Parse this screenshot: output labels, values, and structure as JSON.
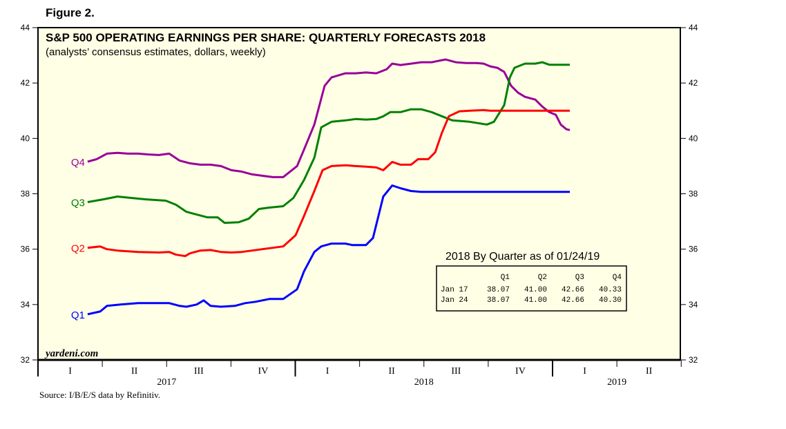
{
  "figure_label": "Figure 2.",
  "chart_data": {
    "type": "line",
    "title": "S&P 500 OPERATING EARNINGS PER SHARE: QUARTERLY FORECASTS 2018",
    "subtitle": "(analysts’ consensus estimates, dollars, weekly)",
    "xlabel": "",
    "ylabel": "",
    "xlim": [
      2017.0,
      2019.5
    ],
    "ylim": [
      32,
      44
    ],
    "yticks": [
      32,
      34,
      36,
      38,
      40,
      42,
      44
    ],
    "x_quarter_labels": [
      "I",
      "II",
      "III",
      "IV",
      "I",
      "II",
      "III",
      "IV",
      "I",
      "II"
    ],
    "x_year_labels": [
      "2017",
      "2018",
      "2019"
    ],
    "watermark": "yardeni.com",
    "source": "Source: I/B/E/S data by Refinitiv.",
    "series": [
      {
        "name": "Q4",
        "color": "#990099",
        "points": [
          [
            2017.193,
            39.16
          ],
          [
            2017.228,
            39.25
          ],
          [
            2017.268,
            39.45
          ],
          [
            2017.309,
            39.48
          ],
          [
            2017.349,
            39.45
          ],
          [
            2017.389,
            39.45
          ],
          [
            2017.43,
            39.42
          ],
          [
            2017.47,
            39.4
          ],
          [
            2017.51,
            39.45
          ],
          [
            2017.55,
            39.2
          ],
          [
            2017.591,
            39.1
          ],
          [
            2017.631,
            39.05
          ],
          [
            2017.671,
            39.05
          ],
          [
            2017.711,
            39.0
          ],
          [
            2017.752,
            38.85
          ],
          [
            2017.792,
            38.8
          ],
          [
            2017.832,
            38.7
          ],
          [
            2017.872,
            38.65
          ],
          [
            2017.913,
            38.6
          ],
          [
            2017.953,
            38.6
          ],
          [
            2018.007,
            39.0
          ],
          [
            2018.034,
            39.6
          ],
          [
            2018.074,
            40.5
          ],
          [
            2018.114,
            41.9
          ],
          [
            2018.141,
            42.2
          ],
          [
            2018.195,
            42.35
          ],
          [
            2018.235,
            42.35
          ],
          [
            2018.275,
            42.38
          ],
          [
            2018.315,
            42.35
          ],
          [
            2018.356,
            42.5
          ],
          [
            2018.377,
            42.7
          ],
          [
            2018.409,
            42.65
          ],
          [
            2018.45,
            42.7
          ],
          [
            2018.49,
            42.75
          ],
          [
            2018.53,
            42.75
          ],
          [
            2018.584,
            42.85
          ],
          [
            2018.624,
            42.75
          ],
          [
            2018.664,
            42.72
          ],
          [
            2018.705,
            42.72
          ],
          [
            2018.732,
            42.7
          ],
          [
            2018.758,
            42.6
          ],
          [
            2018.785,
            42.55
          ],
          [
            2018.812,
            42.4
          ],
          [
            2018.839,
            41.9
          ],
          [
            2018.866,
            41.65
          ],
          [
            2018.893,
            41.5
          ],
          [
            2018.933,
            41.4
          ],
          [
            2018.96,
            41.15
          ],
          [
            2018.987,
            40.95
          ],
          [
            2019.013,
            40.85
          ],
          [
            2019.032,
            40.5
          ],
          [
            2019.054,
            40.33
          ],
          [
            2019.067,
            40.3
          ]
        ]
      },
      {
        "name": "Q3",
        "color": "#008000",
        "points": [
          [
            2017.193,
            37.7
          ],
          [
            2017.255,
            37.8
          ],
          [
            2017.309,
            37.9
          ],
          [
            2017.362,
            37.85
          ],
          [
            2017.416,
            37.8
          ],
          [
            2017.497,
            37.75
          ],
          [
            2017.537,
            37.6
          ],
          [
            2017.577,
            37.35
          ],
          [
            2017.617,
            37.25
          ],
          [
            2017.658,
            37.15
          ],
          [
            2017.698,
            37.15
          ],
          [
            2017.725,
            36.95
          ],
          [
            2017.779,
            36.97
          ],
          [
            2017.819,
            37.1
          ],
          [
            2017.859,
            37.45
          ],
          [
            2017.899,
            37.5
          ],
          [
            2017.953,
            37.55
          ],
          [
            2017.993,
            37.85
          ],
          [
            2018.034,
            38.5
          ],
          [
            2018.074,
            39.3
          ],
          [
            2018.101,
            40.4
          ],
          [
            2018.141,
            40.6
          ],
          [
            2018.195,
            40.65
          ],
          [
            2018.235,
            40.7
          ],
          [
            2018.275,
            40.68
          ],
          [
            2018.315,
            40.7
          ],
          [
            2018.342,
            40.8
          ],
          [
            2018.369,
            40.95
          ],
          [
            2018.409,
            40.95
          ],
          [
            2018.45,
            41.05
          ],
          [
            2018.49,
            41.05
          ],
          [
            2018.53,
            40.95
          ],
          [
            2018.57,
            40.8
          ],
          [
            2018.611,
            40.65
          ],
          [
            2018.678,
            40.6
          ],
          [
            2018.745,
            40.5
          ],
          [
            2018.772,
            40.6
          ],
          [
            2018.812,
            41.2
          ],
          [
            2018.834,
            42.2
          ],
          [
            2018.852,
            42.55
          ],
          [
            2018.893,
            42.7
          ],
          [
            2018.933,
            42.7
          ],
          [
            2018.96,
            42.75
          ],
          [
            2018.987,
            42.66
          ],
          [
            2019.067,
            42.66
          ]
        ]
      },
      {
        "name": "Q2",
        "color": "#ff0000",
        "points": [
          [
            2017.193,
            36.05
          ],
          [
            2017.242,
            36.1
          ],
          [
            2017.268,
            36.0
          ],
          [
            2017.309,
            35.95
          ],
          [
            2017.389,
            35.9
          ],
          [
            2017.47,
            35.88
          ],
          [
            2017.51,
            35.9
          ],
          [
            2017.537,
            35.8
          ],
          [
            2017.572,
            35.75
          ],
          [
            2017.591,
            35.85
          ],
          [
            2017.631,
            35.95
          ],
          [
            2017.671,
            35.97
          ],
          [
            2017.711,
            35.9
          ],
          [
            2017.752,
            35.88
          ],
          [
            2017.792,
            35.9
          ],
          [
            2017.832,
            35.95
          ],
          [
            2017.872,
            36.0
          ],
          [
            2017.913,
            36.05
          ],
          [
            2017.953,
            36.1
          ],
          [
            2018.001,
            36.5
          ],
          [
            2018.034,
            37.2
          ],
          [
            2018.074,
            38.1
          ],
          [
            2018.106,
            38.85
          ],
          [
            2018.141,
            39.0
          ],
          [
            2018.195,
            39.03
          ],
          [
            2018.235,
            39.0
          ],
          [
            2018.275,
            38.98
          ],
          [
            2018.315,
            38.95
          ],
          [
            2018.342,
            38.85
          ],
          [
            2018.377,
            39.15
          ],
          [
            2018.409,
            39.05
          ],
          [
            2018.45,
            39.05
          ],
          [
            2018.477,
            39.25
          ],
          [
            2018.517,
            39.25
          ],
          [
            2018.544,
            39.5
          ],
          [
            2018.57,
            40.2
          ],
          [
            2018.597,
            40.8
          ],
          [
            2018.638,
            40.98
          ],
          [
            2018.678,
            41.0
          ],
          [
            2018.732,
            41.02
          ],
          [
            2018.758,
            41.0
          ],
          [
            2019.067,
            41.0
          ]
        ]
      },
      {
        "name": "Q1",
        "color": "#0000ff",
        "points": [
          [
            2017.193,
            33.65
          ],
          [
            2017.242,
            33.75
          ],
          [
            2017.268,
            33.95
          ],
          [
            2017.322,
            34.0
          ],
          [
            2017.389,
            34.05
          ],
          [
            2017.47,
            34.05
          ],
          [
            2017.51,
            34.05
          ],
          [
            2017.55,
            33.95
          ],
          [
            2017.577,
            33.92
          ],
          [
            2017.617,
            34.0
          ],
          [
            2017.644,
            34.15
          ],
          [
            2017.671,
            33.95
          ],
          [
            2017.711,
            33.92
          ],
          [
            2017.765,
            33.95
          ],
          [
            2017.805,
            34.05
          ],
          [
            2017.846,
            34.1
          ],
          [
            2017.899,
            34.2
          ],
          [
            2017.953,
            34.2
          ],
          [
            2018.007,
            34.55
          ],
          [
            2018.034,
            35.2
          ],
          [
            2018.074,
            35.9
          ],
          [
            2018.101,
            36.1
          ],
          [
            2018.141,
            36.2
          ],
          [
            2018.195,
            36.2
          ],
          [
            2018.221,
            36.15
          ],
          [
            2018.275,
            36.15
          ],
          [
            2018.302,
            36.4
          ],
          [
            2018.342,
            37.9
          ],
          [
            2018.377,
            38.3
          ],
          [
            2018.409,
            38.2
          ],
          [
            2018.45,
            38.1
          ],
          [
            2018.49,
            38.07
          ],
          [
            2019.067,
            38.07
          ]
        ]
      }
    ],
    "table": {
      "title": "2018 By Quarter as of 01/24/19",
      "headers": [
        "",
        "Q1",
        "Q2",
        "Q3",
        "Q4"
      ],
      "rows": [
        [
          "Jan 17",
          "38.07",
          "41.00",
          "42.66",
          "40.33"
        ],
        [
          "Jan 24",
          "38.07",
          "41.00",
          "42.66",
          "40.30"
        ]
      ]
    }
  }
}
